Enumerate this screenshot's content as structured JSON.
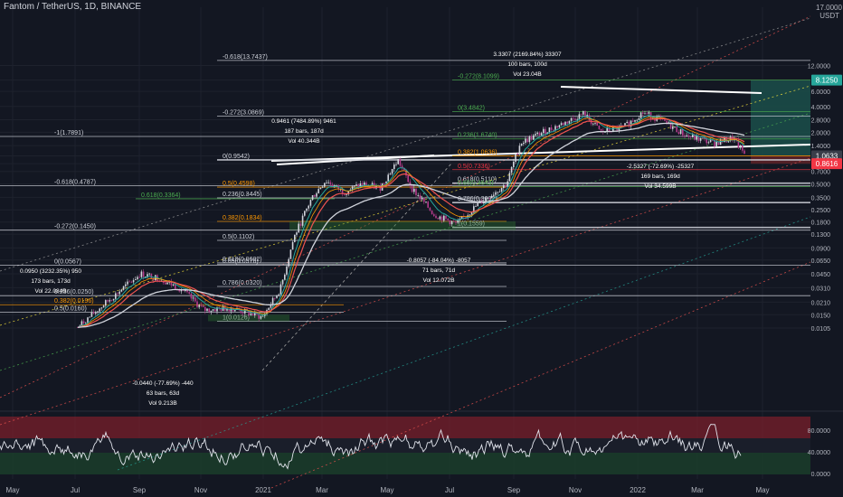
{
  "header": {
    "title": "Fantom / TetherUS, 1D, BINANCE",
    "price_axis_top": "17.0000",
    "currency": "USDT"
  },
  "colors": {
    "background": "#131722",
    "grid": "#1e222d",
    "candle_up": "#d1d4dc",
    "candle_down": "#b43c8c",
    "ema_fast": "#26a69a",
    "ema_red": "#ef5350",
    "ema_white": "#d1d4dc",
    "fib_green": "#4caf50",
    "fib_red": "#f23645",
    "fib_orange": "#ff9800",
    "channel_white": "#c8c8c8",
    "rsi_line": "#e0e3eb",
    "rsi_overbought": "#7a1f2b",
    "rsi_oversold": "#1b3b2a",
    "price_label_green": "#26a69a",
    "price_label_red": "#f23645"
  },
  "chart_data": {
    "type": "candlestick",
    "y_scale": "log",
    "price_axis_ticks": [
      "12.0000",
      "8.1250",
      "6.0000",
      "4.0000",
      "2.8000",
      "2.0000",
      "1.4000",
      "1.0633",
      "0.8616",
      "0.7000",
      "0.5000",
      "0.3500",
      "0.2500",
      "0.1800",
      "0.1300",
      "0.0900",
      "0.0650",
      "0.0450",
      "0.0310",
      "0.0210",
      "0.0150",
      "0.0105"
    ],
    "price_labels": [
      {
        "value": "8.1250",
        "color": "green"
      },
      {
        "value": "1.0633",
        "color": "gray"
      },
      {
        "value": "0.8616",
        "color": "red"
      }
    ],
    "time_axis": [
      "May",
      "Jul",
      "Sep",
      "Nov",
      "2021",
      "Mar",
      "May",
      "Jul",
      "Sep",
      "Nov",
      "2022",
      "Mar",
      "May"
    ],
    "rsi_axis_ticks": [
      "80.0000",
      "40.0000",
      "0.0000"
    ],
    "fib_labels": [
      {
        "text": "-0.618(13.7437)",
        "color": "white"
      },
      {
        "text": "-0.272(8.1099)",
        "color": "green"
      },
      {
        "text": "0(3.4842)",
        "color": "green"
      },
      {
        "text": "-0.272(3.0869)",
        "color": "white"
      },
      {
        "text": "-1(1.7891)",
        "color": "white"
      },
      {
        "text": "0.236(1.6740)",
        "color": "green"
      },
      {
        "text": "0.382(1.0636)",
        "color": "orange"
      },
      {
        "text": "0(0.9542)",
        "color": "white"
      },
      {
        "text": "0.5(0.7336)",
        "color": "red"
      },
      {
        "text": "-0.618(0.4787)",
        "color": "white"
      },
      {
        "text": "0.618(0.5110)",
        "color": "white"
      },
      {
        "text": "0.65(0.4643)",
        "color": "green"
      },
      {
        "text": "0.236(0.3445)",
        "color": "white"
      },
      {
        "text": "0.786(0.3032)",
        "color": "white"
      },
      {
        "text": "0.382(0.1834)",
        "color": "orange"
      },
      {
        "text": "1(0.1559)",
        "color": "white"
      },
      {
        "text": "-0.272(0.1450)",
        "color": "white"
      },
      {
        "text": "0.5(0.1102)",
        "color": "white"
      },
      {
        "text": "0.5(0.4598)",
        "color": "orange"
      },
      {
        "text": "0.618(0.0602)",
        "color": "white"
      },
      {
        "text": "0.65(0.0576)",
        "color": "white"
      },
      {
        "text": "0(0.0567)",
        "color": "white"
      },
      {
        "text": "0.618(0.3364)",
        "color": "green"
      },
      {
        "text": "0.786(0.0320)",
        "color": "white"
      },
      {
        "text": "0.236(0.0250)",
        "color": "white"
      },
      {
        "text": "0.382(0.0196)",
        "color": "orange"
      },
      {
        "text": "1(0.0126)",
        "color": "white"
      },
      {
        "text": "0.5(0.0160)",
        "color": "white"
      }
    ],
    "measure_annotations": [
      {
        "lines": [
          "3.3307 (2169.84%) 33307",
          "100 bars, 100d",
          "Vol 23.04B"
        ]
      },
      {
        "lines": [
          "0.9461 (7484.89%) 9461",
          "187 bars, 187d",
          "Vol 40.344B"
        ]
      },
      {
        "lines": [
          "0.0950 (3232.35%) 950",
          "173 bars, 173d",
          "Vol 22.084B"
        ]
      },
      {
        "lines": [
          "-2.5327 (-72.69%) -25327",
          "169 bars, 169d",
          "Vol 34.599B"
        ]
      },
      {
        "lines": [
          "-0.8057 (-84.04%) -8057",
          "71 bars, 71d",
          "Vol 12.072B"
        ]
      },
      {
        "lines": [
          "-0.0440 (-77.69%) -440",
          "63 bars, 63d",
          "Vol 9.213B"
        ]
      }
    ]
  }
}
